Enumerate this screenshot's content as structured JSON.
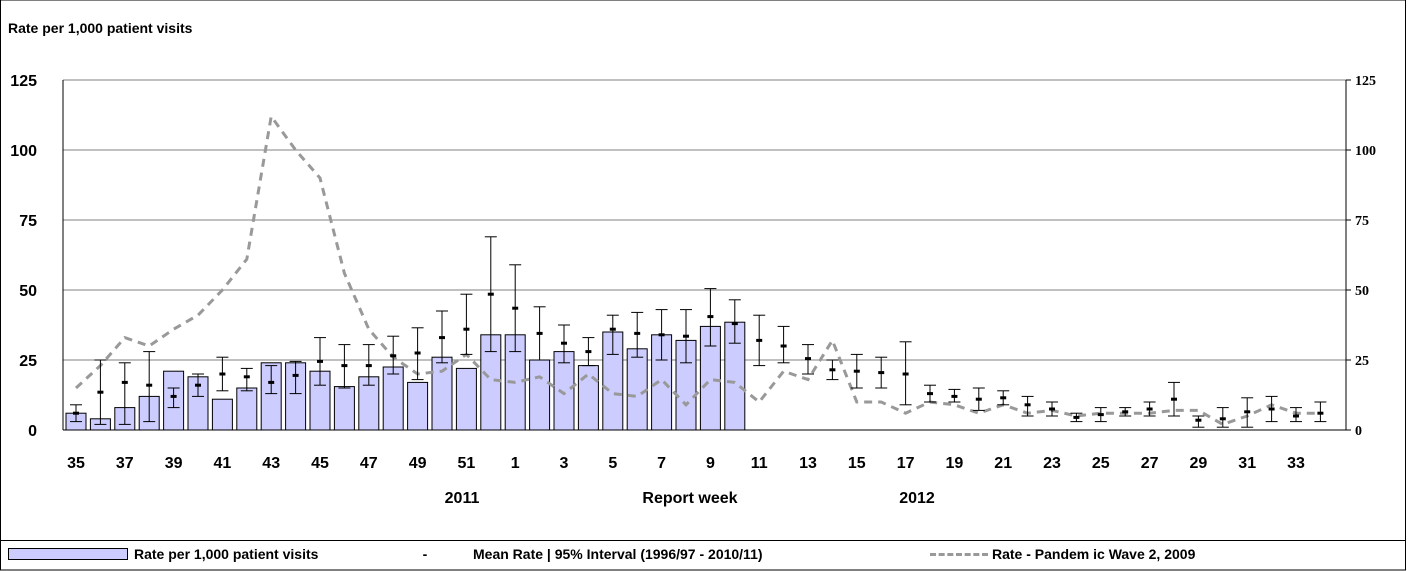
{
  "chart_data": {
    "type": "bar",
    "title": "",
    "y_axis_title": "Rate per 1,000  patient visits",
    "xlabel": "Report week",
    "year_labels": [
      "2011",
      "2012"
    ],
    "ylim": [
      0,
      125
    ],
    "y_ticks": [
      0,
      25,
      50,
      75,
      100,
      125
    ],
    "grid": true,
    "legend_position": "bottom",
    "weeks": [
      "35",
      "36",
      "37",
      "38",
      "39",
      "40",
      "41",
      "42",
      "43",
      "44",
      "45",
      "46",
      "47",
      "48",
      "49",
      "50",
      "51",
      "52",
      "1",
      "2",
      "3",
      "4",
      "5",
      "6",
      "7",
      "8",
      "9",
      "10",
      "11",
      "12",
      "13",
      "14",
      "15",
      "16",
      "17",
      "18",
      "19",
      "20",
      "21",
      "22",
      "23",
      "24",
      "25",
      "26",
      "27",
      "28",
      "29",
      "30",
      "31",
      "32",
      "33",
      "34"
    ],
    "x_tick_labels": [
      "35",
      "37",
      "39",
      "41",
      "43",
      "45",
      "47",
      "49",
      "51",
      "1",
      "3",
      "5",
      "7",
      "9",
      "11",
      "13",
      "15",
      "17",
      "19",
      "21",
      "23",
      "25",
      "27",
      "29",
      "31",
      "33"
    ],
    "series": [
      {
        "name": "Rate per 1,000 patient visits",
        "kind": "bar",
        "color": "#ccccff",
        "values": [
          6,
          4,
          8,
          12,
          21,
          19,
          11,
          15,
          24,
          24,
          21,
          15.5,
          19,
          22.5,
          17,
          26,
          22,
          34,
          34,
          25,
          28,
          23,
          35,
          29,
          34,
          32,
          37,
          38.5,
          null,
          null,
          null,
          null,
          null,
          null,
          null,
          null,
          null,
          null,
          null,
          null,
          null,
          null,
          null,
          null,
          null,
          null,
          null,
          null,
          null,
          null,
          null,
          null
        ]
      },
      {
        "name": "Mean Rate | 95% Interval (1996/97 - 2010/11)",
        "kind": "errorbar",
        "mean": [
          6,
          13.5,
          17,
          16,
          12,
          16,
          20,
          19,
          17,
          19.5,
          24.5,
          23,
          23,
          26.5,
          27.5,
          33,
          36,
          48.5,
          43.5,
          34.5,
          31,
          28,
          36,
          34.5,
          34,
          33.5,
          40.5,
          38,
          32,
          30,
          25.5,
          21.5,
          21,
          20.5,
          20,
          13,
          12,
          11,
          11.5,
          9,
          7.5,
          4.5,
          5.5,
          6.5,
          7.5,
          11,
          3.5,
          4,
          6.5,
          7.5,
          5,
          6
        ],
        "lower": [
          3,
          2,
          2,
          3,
          8,
          12,
          14,
          14,
          13,
          13,
          16,
          15,
          16,
          20,
          18,
          24,
          27,
          28,
          28,
          25,
          24,
          23,
          27,
          26,
          25,
          24,
          30,
          31,
          23,
          24,
          20,
          18,
          15,
          15,
          9,
          10,
          10,
          7,
          9,
          5,
          5,
          3,
          3,
          5,
          5,
          5,
          1,
          1,
          1,
          3,
          3,
          3
        ],
        "upper": [
          9,
          25,
          24,
          28,
          15,
          20,
          26,
          22,
          23,
          24.5,
          33,
          30.5,
          30.5,
          33.5,
          36.5,
          42.5,
          48.5,
          69,
          59,
          44,
          37.5,
          33,
          41,
          42,
          43,
          43,
          50.5,
          46.5,
          41,
          37,
          30.5,
          25,
          27,
          26,
          31.5,
          16,
          14.5,
          15,
          14,
          12,
          10,
          6,
          8,
          8,
          10,
          17,
          5,
          8,
          11.5,
          12,
          8,
          10
        ]
      },
      {
        "name": "Rate - Pandemic Wave 2, 2009",
        "kind": "line",
        "color": "#999999",
        "values": [
          15,
          23,
          33,
          30,
          36,
          41,
          50,
          61,
          112,
          100,
          90,
          56,
          36,
          26,
          20,
          21,
          27,
          18,
          17,
          19,
          13,
          20,
          13,
          12,
          18,
          9,
          18,
          17,
          10,
          21,
          18,
          32,
          10,
          10,
          6,
          10,
          9,
          6,
          9,
          6,
          7,
          5,
          6,
          6,
          6,
          7,
          7,
          2,
          5,
          9,
          6,
          6
        ]
      }
    ]
  },
  "legend": {
    "bar_label": "Rate per 1,000 patient visits",
    "mean_symbol": "-",
    "mean_label": "Mean Rate | 95% Interval (1996/97 - 2010/11)",
    "line_label": "Rate - Pandem ic Wave 2, 2009"
  },
  "colors": {
    "bar_fill": "#ccccff",
    "pandemic_line": "#999999",
    "grid": "#808080"
  }
}
